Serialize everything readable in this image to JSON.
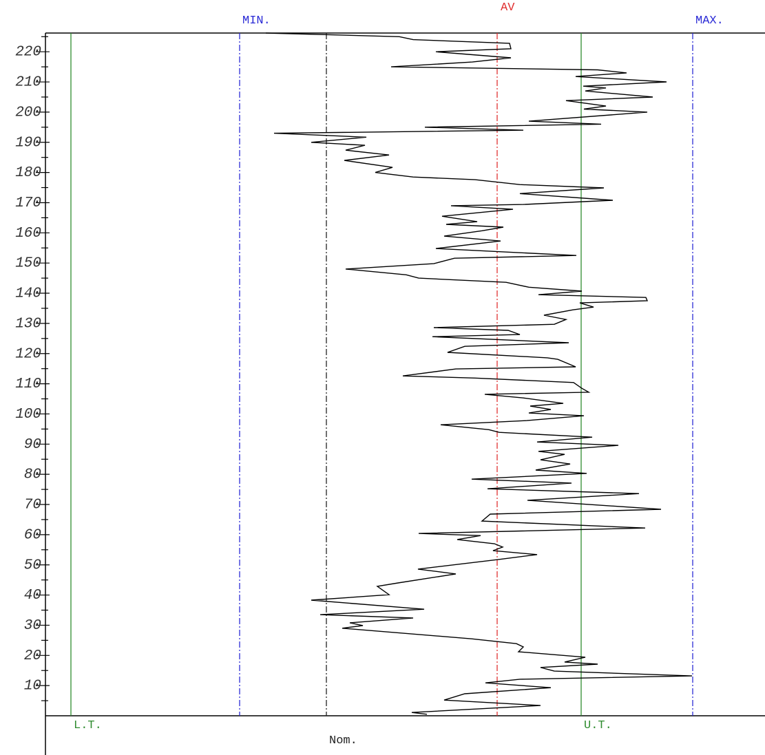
{
  "chart_data": {
    "type": "line",
    "xlim": [
      66,
      1111
    ],
    "ylim": [
      0,
      226.2
    ],
    "yticks": [
      10,
      20,
      30,
      40,
      50,
      60,
      70,
      80,
      90,
      100,
      110,
      120,
      130,
      140,
      150,
      160,
      170,
      180,
      190,
      200,
      210,
      220
    ],
    "yminorticks": [
      5,
      15,
      25,
      35,
      45,
      55,
      65,
      75,
      85,
      95,
      105,
      115,
      125,
      135,
      145,
      155,
      165,
      175,
      185,
      195,
      205,
      215,
      225
    ],
    "reference_lines": [
      {
        "label": "L.T.",
        "value": 103,
        "color": "#2e8b2e",
        "style": "solid"
      },
      {
        "label": "MIN.",
        "value": 348,
        "color": "#2b2bd6",
        "style": "dashdot"
      },
      {
        "label": "Nom.",
        "value": 474,
        "color": "#222222",
        "style": "dashdot"
      },
      {
        "label": "AV",
        "value": 722,
        "color": "#e03030",
        "style": "dashdot"
      },
      {
        "label": "U.T.",
        "value": 844,
        "color": "#2e8b2e",
        "style": "solid"
      },
      {
        "label": "MAX.",
        "value": 1006,
        "color": "#2b2bd6",
        "style": "dashdot"
      }
    ],
    "series": [
      {
        "color": "#000000",
        "index": [
          0.5,
          1.1,
          3.4,
          5.2,
          7.3,
          9.3,
          10.9,
          12.1,
          13.2,
          14.8,
          16,
          17.1,
          17.8,
          19.4,
          21.2,
          22.8,
          23.9,
          25.5,
          29,
          29.9,
          30.8,
          32.4,
          33.5,
          35.3,
          38.3,
          40.1,
          42.9,
          44,
          47,
          48.6,
          51.8,
          53.4,
          54.7,
          55.9,
          57,
          58.4,
          59.7,
          60.4,
          62.2,
          64.5,
          66.8,
          68.4,
          71.4,
          73.6,
          75.2,
          77.1,
          78.4,
          80.3,
          81.4,
          83.4,
          84.8,
          86.6,
          87.6,
          89.6,
          90.7,
          92.3,
          93.9,
          94.8,
          96.4,
          97.8,
          99.4,
          100.3,
          101.5,
          102.6,
          103.5,
          105.3,
          106.5,
          107.2,
          108.5,
          110.4,
          111.9,
          112.6,
          114.9,
          115.6,
          118.1,
          118.6,
          120.4,
          122.4,
          123.6,
          125.6,
          126.3,
          127.7,
          128.6,
          129.7,
          131.3,
          132.7,
          134.5,
          135.4,
          136.8,
          137.5,
          138.6,
          139.5,
          140.7,
          142,
          143.6,
          145,
          146.1,
          148,
          149.8,
          151.6,
          152.5,
          154.8,
          157.3,
          158.9,
          160.7,
          161.9,
          162.8,
          163.7,
          165.5,
          167.8,
          169,
          169.4,
          170.8,
          173,
          174.9,
          176,
          177.6,
          178.5,
          180,
          181.7,
          184,
          185.8,
          187.4,
          189,
          190,
          191.7,
          193,
          194,
          195,
          196,
          197,
          200,
          201,
          202,
          203.8,
          205,
          207,
          208,
          208.6,
          210,
          211.8,
          213,
          214,
          215,
          216.6,
          218,
          220,
          221,
          222.8,
          224,
          225,
          226.2
        ],
        "values": [
          620,
          598,
          785,
          645,
          675,
          800,
          705,
          755,
          1005,
          805,
          785,
          868,
          820,
          850,
          753,
          760,
          750,
          685,
          497,
          527,
          508,
          600,
          465,
          616,
          452,
          565,
          548,
          578,
          662,
          607,
          725,
          780,
          716,
          730,
          718,
          664,
          698,
          608,
          937,
          700,
          712,
          960,
          766,
          928,
          708,
          830,
          685,
          852,
          778,
          828,
          785,
          820,
          782,
          898,
          780,
          860,
          725,
          710,
          640,
          765,
          848,
          768,
          800,
          770,
          818,
          760,
          704,
          855,
          845,
          833,
          690,
          585,
          662,
          836,
          810,
          795,
          650,
          675,
          826,
          628,
          755,
          738,
          630,
          805,
          822,
          790,
          832,
          862,
          842,
          940,
          938,
          782,
          845,
          768,
          735,
          608,
          590,
          502,
          630,
          660,
          837,
          633,
          727,
          645,
          700,
          731,
          648,
          693,
          642,
          745,
          655,
          760,
          890,
          755,
          877,
          755,
          690,
          600,
          545,
          570,
          500,
          565,
          502,
          530,
          452,
          532,
          398,
          760,
          617,
          873,
          768,
          940,
          848,
          880,
          822,
          948,
          850,
          880,
          847,
          968,
          836,
          910,
          868,
          568,
          686,
          742,
          633,
          742,
          740,
          600,
          580,
          386
        ]
      }
    ]
  }
}
